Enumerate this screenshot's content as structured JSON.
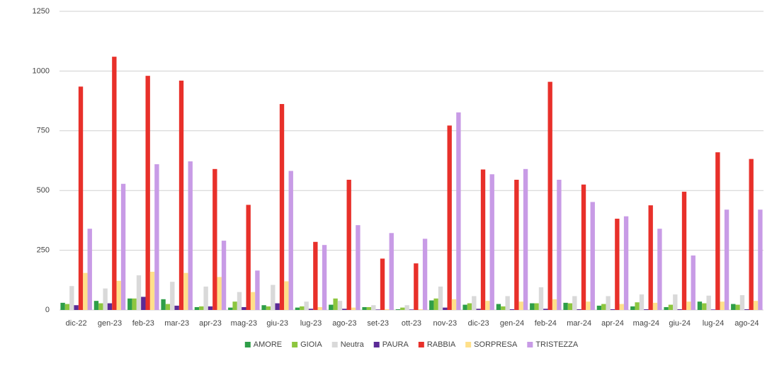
{
  "chart_data": {
    "type": "bar",
    "categories": [
      "dic-22",
      "gen-23",
      "feb-23",
      "mar-23",
      "apr-23",
      "mag-23",
      "giu-23",
      "lug-23",
      "ago-23",
      "set-23",
      "ott-23",
      "nov-23",
      "dic-23",
      "gen-24",
      "feb-24",
      "mar-24",
      "apr-24",
      "mag-24",
      "giu-24",
      "lug-24",
      "ago-24"
    ],
    "series": [
      {
        "name": "AMORE",
        "color": "#2e9e48",
        "values": [
          30,
          38,
          48,
          45,
          12,
          10,
          20,
          10,
          22,
          12,
          3,
          40,
          22,
          25,
          28,
          30,
          18,
          15,
          12,
          35,
          25
        ]
      },
      {
        "name": "GIOIA",
        "color": "#8dc63f",
        "values": [
          25,
          28,
          48,
          25,
          15,
          35,
          15,
          15,
          48,
          12,
          10,
          48,
          28,
          15,
          28,
          28,
          25,
          32,
          22,
          28,
          22
        ]
      },
      {
        "name": "Neutra",
        "color": "#d9d9d9",
        "values": [
          100,
          90,
          145,
          118,
          98,
          75,
          105,
          35,
          38,
          20,
          20,
          98,
          58,
          58,
          95,
          58,
          58,
          65,
          65,
          60,
          62
        ]
      },
      {
        "name": "PAURA",
        "color": "#5b2a96",
        "values": [
          20,
          28,
          55,
          18,
          15,
          12,
          28,
          5,
          5,
          2,
          2,
          10,
          5,
          3,
          5,
          3,
          3,
          3,
          3,
          2,
          3
        ]
      },
      {
        "name": "RABBIA",
        "color": "#e8302a",
        "values": [
          935,
          1060,
          980,
          960,
          590,
          440,
          862,
          285,
          545,
          215,
          195,
          772,
          588,
          545,
          955,
          525,
          382,
          438,
          495,
          660,
          632
        ]
      },
      {
        "name": "SORPRESA",
        "color": "#ffe08a",
        "values": [
          155,
          122,
          160,
          155,
          138,
          75,
          120,
          12,
          10,
          3,
          3,
          45,
          38,
          35,
          45,
          35,
          25,
          30,
          35,
          35,
          38
        ]
      },
      {
        "name": "TRISTEZZA",
        "color": "#c89be6",
        "values": [
          340,
          528,
          610,
          622,
          290,
          165,
          582,
          272,
          355,
          322,
          298,
          827,
          568,
          590,
          545,
          452,
          392,
          340,
          228,
          420,
          420
        ]
      }
    ],
    "ylim": [
      0,
      1250
    ],
    "yticks": [
      0,
      250,
      500,
      750,
      1000,
      1250
    ],
    "grid": true,
    "legend": "bottom"
  }
}
